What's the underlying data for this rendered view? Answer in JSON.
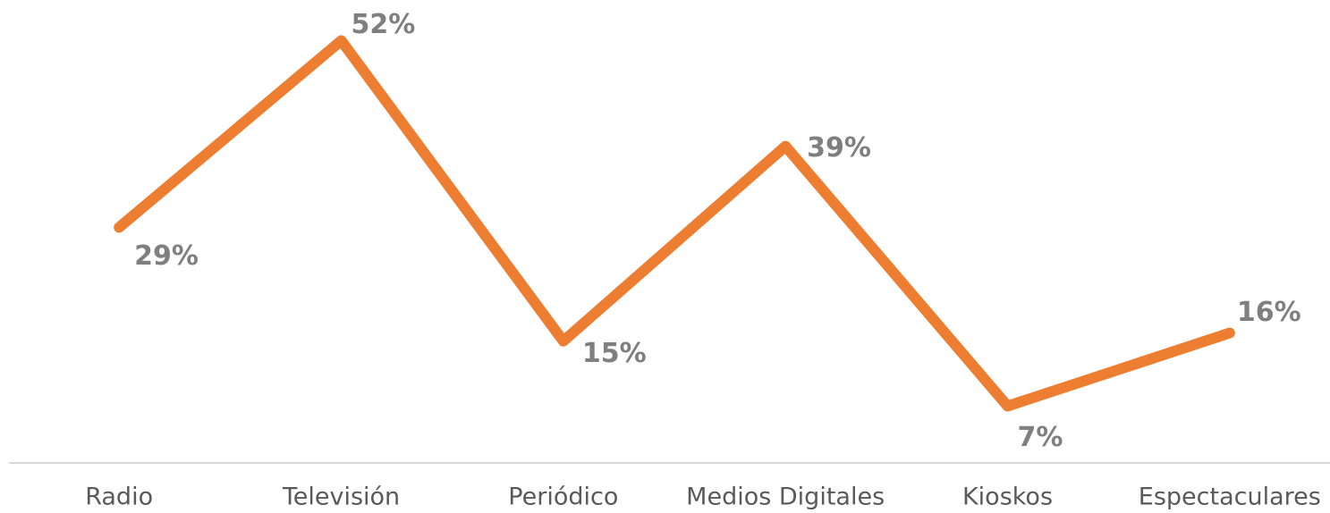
{
  "chart_data": {
    "type": "line",
    "categories": [
      "Radio",
      "Televisión",
      "Periódico",
      "Medios Digitales",
      "Kioskos",
      "Espectaculares"
    ],
    "series": [
      {
        "color": "#ed7d31",
        "values": [
          29,
          52,
          15,
          39,
          7,
          16
        ],
        "value_labels": [
          "29%",
          "52%",
          "15%",
          "39%",
          "7%",
          "16%"
        ]
      }
    ],
    "ylim": [
      0,
      57
    ]
  }
}
